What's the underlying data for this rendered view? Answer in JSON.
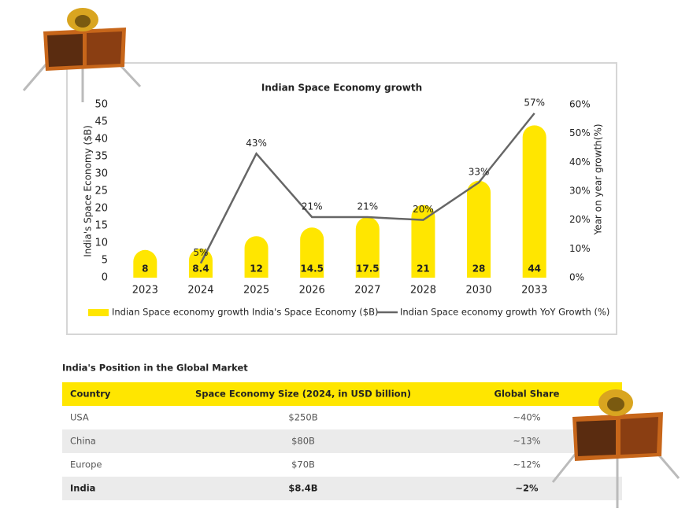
{
  "chart_data": {
    "type": "bar",
    "title": "Indian Space Economy growth",
    "y_label": "India's Space Economy ($B)",
    "y2_label": "Year on year growth(%)",
    "categories": [
      "2023",
      "2024",
      "2025",
      "2026",
      "2027",
      "2028",
      "2030",
      "2033"
    ],
    "series": [
      {
        "name": "Indian Space economy growth India's Space Economy ($B)",
        "type": "bar",
        "color": "#ffe600",
        "values": [
          8,
          8.4,
          12,
          14.5,
          17.5,
          21,
          28,
          44
        ]
      },
      {
        "name": "Indian Space economy growth YoY Growth (%)",
        "type": "line",
        "axis": "y2",
        "color": "#666666",
        "values": [
          null,
          5,
          43,
          21,
          21,
          20,
          33,
          57
        ],
        "value_labels": [
          null,
          "5%",
          "43%",
          "21%",
          "21%",
          "20%",
          "33%",
          "57%"
        ]
      }
    ],
    "ylim": [
      0,
      50
    ],
    "yticks": [
      0,
      5,
      10,
      15,
      20,
      25,
      30,
      35,
      40,
      45,
      50
    ],
    "y2lim": [
      0,
      60
    ],
    "y2ticks": [
      {
        "value": 0,
        "label": "0%"
      },
      {
        "value": 10,
        "label": "10%"
      },
      {
        "value": 20,
        "label": "20%"
      },
      {
        "value": 30,
        "label": "30%"
      },
      {
        "value": 40,
        "label": "40%"
      },
      {
        "value": 50,
        "label": "50%"
      },
      {
        "value": 60,
        "label": "60%"
      }
    ],
    "grid": false,
    "legend": "bottom"
  },
  "table": {
    "title": "India's Position in the Global Market",
    "header": [
      "Country",
      "Space Economy Size (2024, in USD billion)",
      "Global Share"
    ],
    "rows": [
      [
        "USA",
        "$250B",
        "~40%"
      ],
      [
        "China",
        "$80B",
        "~13%"
      ],
      [
        "Europe",
        "$70B",
        "~12%"
      ],
      [
        "India",
        "$8.4B",
        "~2%"
      ]
    ]
  }
}
